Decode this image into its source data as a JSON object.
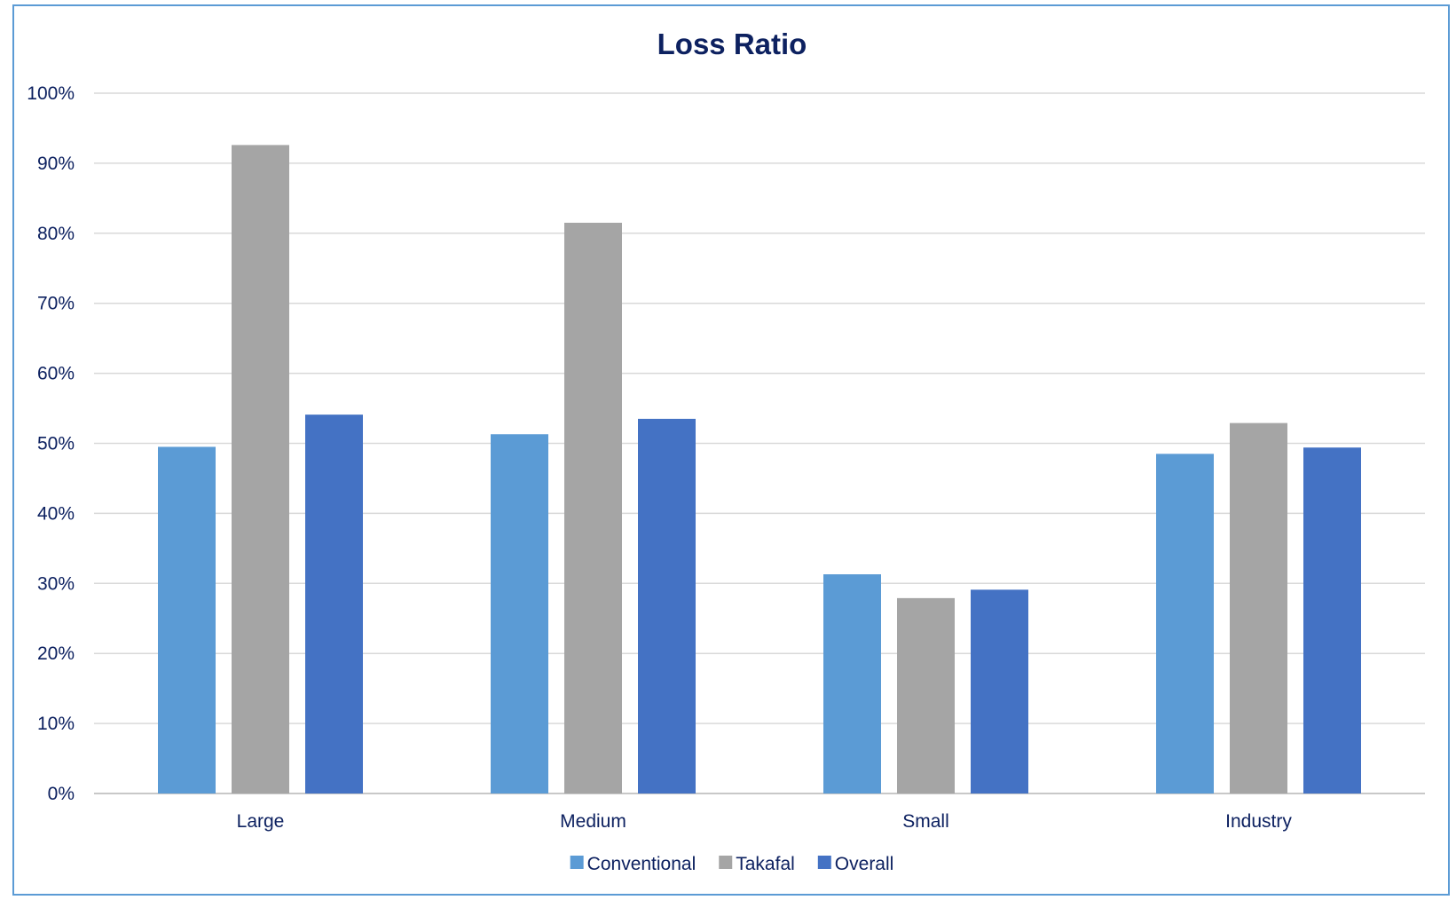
{
  "chart_data": {
    "type": "bar",
    "title": "Loss Ratio",
    "categories": [
      "Large",
      "Medium",
      "Small",
      "Industry"
    ],
    "series": [
      {
        "name": "Conventional",
        "values": [
          49.5,
          51.3,
          31.3,
          48.5
        ],
        "color": "#5b9bd5"
      },
      {
        "name": "Takafal",
        "values": [
          92.6,
          81.5,
          27.9,
          52.9
        ],
        "color": "#a5a5a5"
      },
      {
        "name": "Overall",
        "values": [
          54.1,
          53.5,
          29.1,
          49.4
        ],
        "color": "#4472c4"
      }
    ],
    "ylim": [
      0,
      100
    ],
    "yticks": [
      "0%",
      "10%",
      "20%",
      "30%",
      "40%",
      "50%",
      "60%",
      "70%",
      "80%",
      "90%",
      "100%"
    ],
    "grid": true,
    "legend_position": "bottom"
  }
}
